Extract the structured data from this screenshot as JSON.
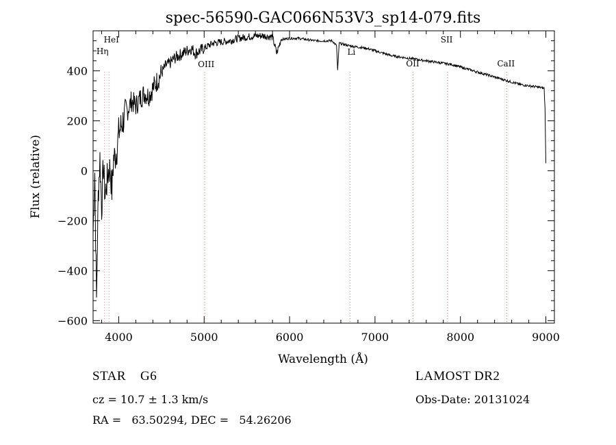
{
  "chart_data": {
    "type": "line",
    "title": "spec-56590-GAC066N53V3_sp14-079.fits",
    "xlabel": "Wavelength (Å)",
    "ylabel": "Flux (relative)",
    "xlim": [
      3700,
      9100
    ],
    "ylim": [
      -610,
      560
    ],
    "xticks": [
      4000,
      5000,
      6000,
      7000,
      8000,
      9000
    ],
    "yticks": [
      -600,
      -400,
      -200,
      0,
      200,
      400
    ],
    "grid": false,
    "series": [
      {
        "x": [
          3700,
          3720,
          3740,
          3760,
          3780,
          3800,
          3820,
          3840,
          3860,
          3880,
          3900,
          3920,
          3940,
          3960,
          3980,
          4000,
          4050,
          4100,
          4150,
          4200,
          4250,
          4300,
          4350,
          4400,
          4450,
          4500,
          4550,
          4600,
          4650,
          4700,
          4750,
          4800,
          4850,
          4900,
          4950,
          5000,
          5100,
          5200,
          5300,
          5400,
          5500,
          5600,
          5700,
          5800,
          5850,
          5900,
          6000,
          6100,
          6200,
          6300,
          6400,
          6500,
          6550,
          6563,
          6580,
          6700,
          6800,
          6900,
          7000,
          7100,
          7200,
          7300,
          7400,
          7500,
          7600,
          7700,
          7800,
          7900,
          8000,
          8100,
          8200,
          8300,
          8400,
          8500,
          8600,
          8700,
          8800,
          8900,
          8980,
          8990,
          9000
        ],
        "y": [
          -250,
          0,
          -520,
          -100,
          50,
          -150,
          20,
          -100,
          -50,
          0,
          10,
          -80,
          50,
          60,
          90,
          150,
          200,
          240,
          280,
          260,
          290,
          310,
          300,
          330,
          360,
          390,
          420,
          430,
          450,
          460,
          470,
          480,
          490,
          470,
          480,
          490,
          510,
          515,
          520,
          530,
          535,
          540,
          540,
          535,
          470,
          525,
          530,
          530,
          525,
          520,
          520,
          520,
          500,
          400,
          510,
          500,
          495,
          490,
          480,
          470,
          460,
          455,
          450,
          445,
          440,
          435,
          430,
          425,
          415,
          405,
          395,
          385,
          375,
          365,
          355,
          345,
          340,
          335,
          330,
          250,
          30
        ]
      }
    ],
    "lines": [
      {
        "wavelength": 3889,
        "label": "HeI"
      },
      {
        "wavelength": 3835,
        "label": "Hη"
      },
      {
        "wavelength": 5007,
        "label": "OIII"
      },
      {
        "wavelength": 6708,
        "label": "Li"
      },
      {
        "wavelength": 7444,
        "label": "OII"
      },
      {
        "wavelength": 7848,
        "label": "SII"
      },
      {
        "wavelength": 8542,
        "label": "CaII"
      }
    ],
    "colors": {
      "spectrum": "#000000",
      "line_marker": "#d08080"
    }
  },
  "info": {
    "class": "STAR    G6",
    "survey": "LAMOST DR2",
    "cz": "cz = 10.7 ± 1.3 km/s",
    "obs_date": "Obs-Date: 20131024",
    "coords": "RA =   63.50294, DEC =   54.26206"
  }
}
